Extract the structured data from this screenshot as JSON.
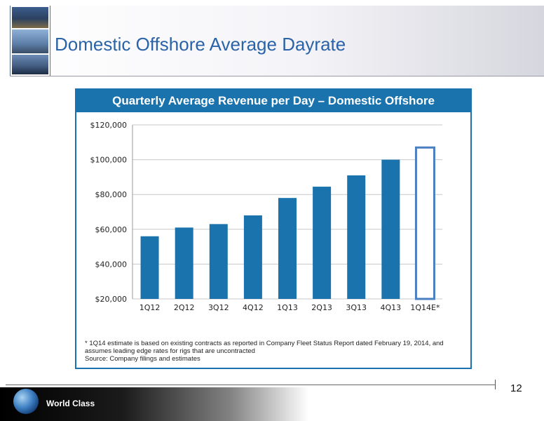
{
  "slide": {
    "title": "Domestic Offshore Average Dayrate",
    "page_number": "12",
    "tagline": "World Class"
  },
  "chart_data": {
    "type": "bar",
    "title": "Quarterly Average Revenue per Day – Domestic Offshore",
    "categories": [
      "1Q12",
      "2Q12",
      "3Q12",
      "4Q12",
      "1Q13",
      "2Q13",
      "3Q13",
      "4Q13",
      "1Q14E*"
    ],
    "values": [
      56000,
      61000,
      63000,
      68000,
      78000,
      84500,
      91000,
      100000,
      107000
    ],
    "estimated_index": 8,
    "ylim": [
      20000,
      120000
    ],
    "yticks": [
      20000,
      40000,
      60000,
      80000,
      100000,
      120000
    ],
    "ytick_labels": [
      "$20,000",
      "$40,000",
      "$60,000",
      "$80,000",
      "$100,000",
      "$120,000"
    ],
    "xlabel": "",
    "ylabel": "",
    "grid": true,
    "colors": {
      "bar": "#1a73ad",
      "estimate_outline": "#4a7fc1",
      "header": "#1a73ad",
      "grid": "#c8c8c8"
    }
  },
  "footnote": {
    "line1": "* 1Q14 estimate is based on existing contracts as reported in Company Fleet Status Report dated February 19, 2014, and",
    "line2": "assumes leading edge rates for rigs that are uncontracted",
    "line3": "Source: Company filings and estimates"
  },
  "icons": {
    "header_photos": "offshore-rig-photos",
    "footer_logo": "globe-icon"
  }
}
